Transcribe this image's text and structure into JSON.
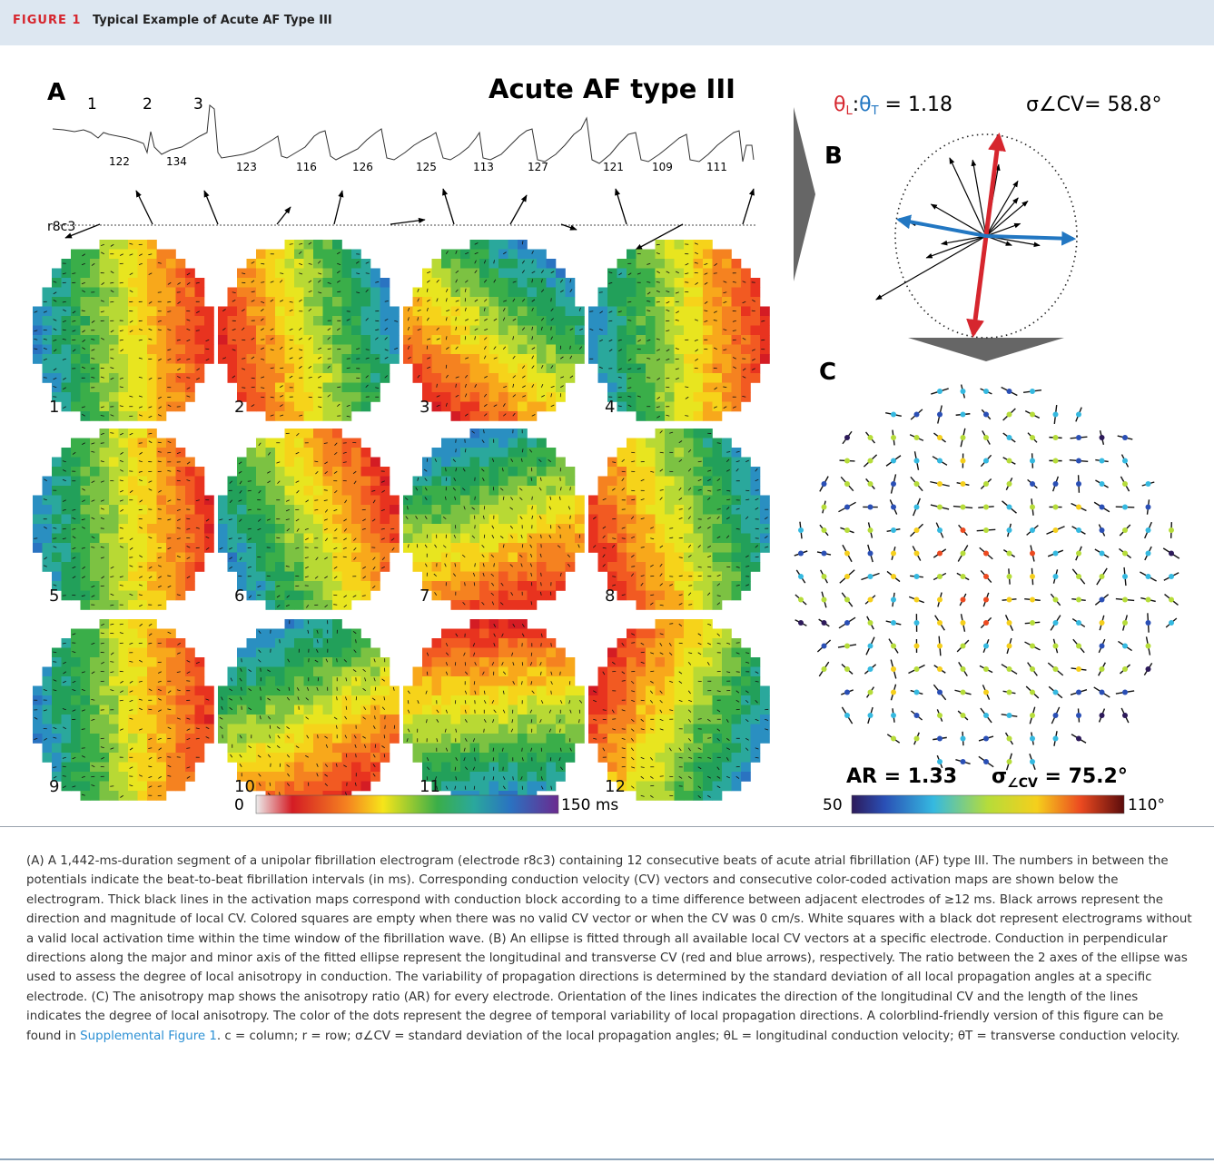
{
  "header": {
    "label": "FIGURE 1",
    "title": "Typical Example of Acute AF Type III"
  },
  "panel_a": {
    "letter": "A",
    "title": "Acute AF type III",
    "electrode_label": "r8c3",
    "beat_numbers_top": [
      "1",
      "2",
      "3"
    ],
    "intervals": [
      "122",
      "134",
      "123",
      "116",
      "126",
      "125",
      "113",
      "127",
      "121",
      "109",
      "111"
    ],
    "map_numbers": [
      "1",
      "2",
      "3",
      "4",
      "5",
      "6",
      "7",
      "8",
      "9",
      "10",
      "11",
      "12"
    ],
    "colorbar_min": "0",
    "colorbar_max": "150 ms"
  },
  "panel_b": {
    "letter": "B",
    "ratio_label": "θL:θT = 1.18",
    "sigma_label": "σ∠CV= 58.8°",
    "longitudinal_color": "#d6262e",
    "transverse_color": "#2277c2"
  },
  "panel_c": {
    "letter": "C",
    "ar_label": "AR = 1.33",
    "sigma_label": "σ∠CV = 75.2°",
    "colorbar_min": "50",
    "colorbar_max": "110°"
  },
  "caption": {
    "text_before_link": "(A) A 1,442-ms-duration segment of a unipolar fibrillation electrogram (electrode r8c3) containing 12 consecutive beats of acute atrial fibrillation (AF) type III. The numbers in between the potentials indicate the beat-to-beat fibrillation intervals (in ms). Corresponding conduction velocity (CV) vectors and consecutive color-coded activation maps are shown below the electrogram. Thick black lines in the activation maps correspond with conduction block according to a time difference between adjacent electrodes of ≥12 ms. Black arrows represent the direction and magnitude of local CV. Colored squares are empty when there was no valid CV vector or when the CV was 0 cm/s. White squares with a black dot represent electrograms without a valid local activation time within the time window of the fibrillation wave. (B) An ellipse is fitted through all available local CV vectors at a specific electrode. Conduction in perpendicular directions along the major and minor axis of the fitted ellipse represent the longitudinal and transverse CV (red and blue arrows), respectively. The ratio between the 2 axes of the ellipse was used to assess the degree of local anisotropy in conduction. The variability of propagation directions is determined by the standard deviation of all local propagation angles at a specific electrode. (C) The anisotropy map shows the anisotropy ratio (AR) for every electrode. Orientation of the lines indicates the direction of the longitudinal CV and the length of the lines indicates the degree of local anisotropy. The color of the dots represent the degree of temporal variability of local propagation directions. A colorblind-friendly version of this figure can be found in ",
    "link_text": "Supplemental Figure 1",
    "text_after_link": ". c = column; r = row; σ∠CV = standard deviation of the local propagation angles; θL = longitudinal conduction velocity; θT = transverse conduction velocity."
  }
}
